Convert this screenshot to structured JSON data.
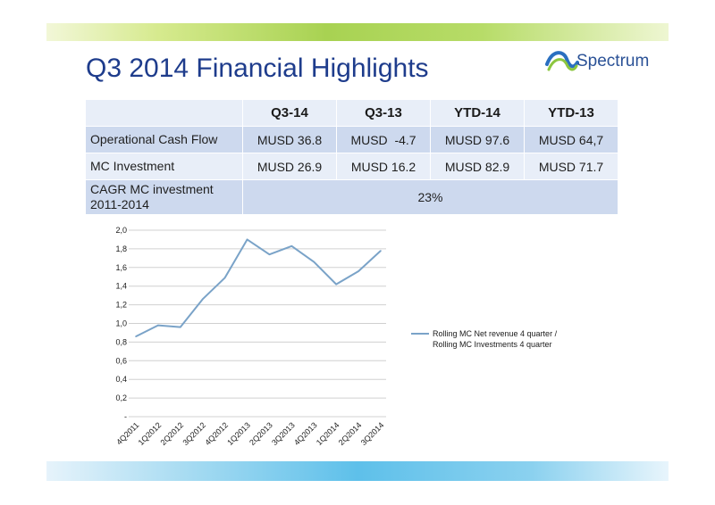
{
  "title": "Q3 2014 Financial Highlights",
  "logo": {
    "text": "Spectrum"
  },
  "table": {
    "headers": [
      "",
      "Q3-14",
      "Q3-13",
      "YTD-14",
      "YTD-13"
    ],
    "rows": [
      {
        "label": "Operational Cash Flow",
        "values": [
          "MUSD 36.8",
          "MUSD  -4.7",
          "MUSD 97.6",
          "MUSD 64,7"
        ]
      },
      {
        "label": "MC Investment",
        "values": [
          "MUSD 26.9",
          "MUSD 16.2",
          "MUSD 82.9",
          "MUSD 71.7"
        ]
      },
      {
        "label": "CAGR MC investment 2011-2014",
        "value": "23%"
      }
    ]
  },
  "chart_data": {
    "type": "line",
    "categories": [
      "4Q2011",
      "1Q2012",
      "2Q2012",
      "3Q2012",
      "4Q2012",
      "1Q2013",
      "2Q2013",
      "3Q2013",
      "4Q2013",
      "1Q2014",
      "2Q2014",
      "3Q2014"
    ],
    "series": [
      {
        "name": "Rolling MC Net revenue 4 quarter / Rolling MC Investments 4 quarter",
        "values": [
          0.86,
          0.98,
          0.96,
          1.26,
          1.49,
          1.9,
          1.74,
          1.83,
          1.66,
          1.42,
          1.56,
          1.78
        ],
        "color": "#7aa3c8"
      }
    ],
    "y_ticks": [
      "-",
      "0,2",
      "0,4",
      "0,6",
      "0,8",
      "1,0",
      "1,2",
      "1,4",
      "1,6",
      "1,8",
      "2,0"
    ],
    "ylim": [
      0,
      2.0
    ],
    "grid": "horizontal",
    "legend_position": "right",
    "legend_lines": [
      "Rolling MC Net revenue 4 quarter /",
      "Rolling MC Investments 4 quarter"
    ]
  }
}
